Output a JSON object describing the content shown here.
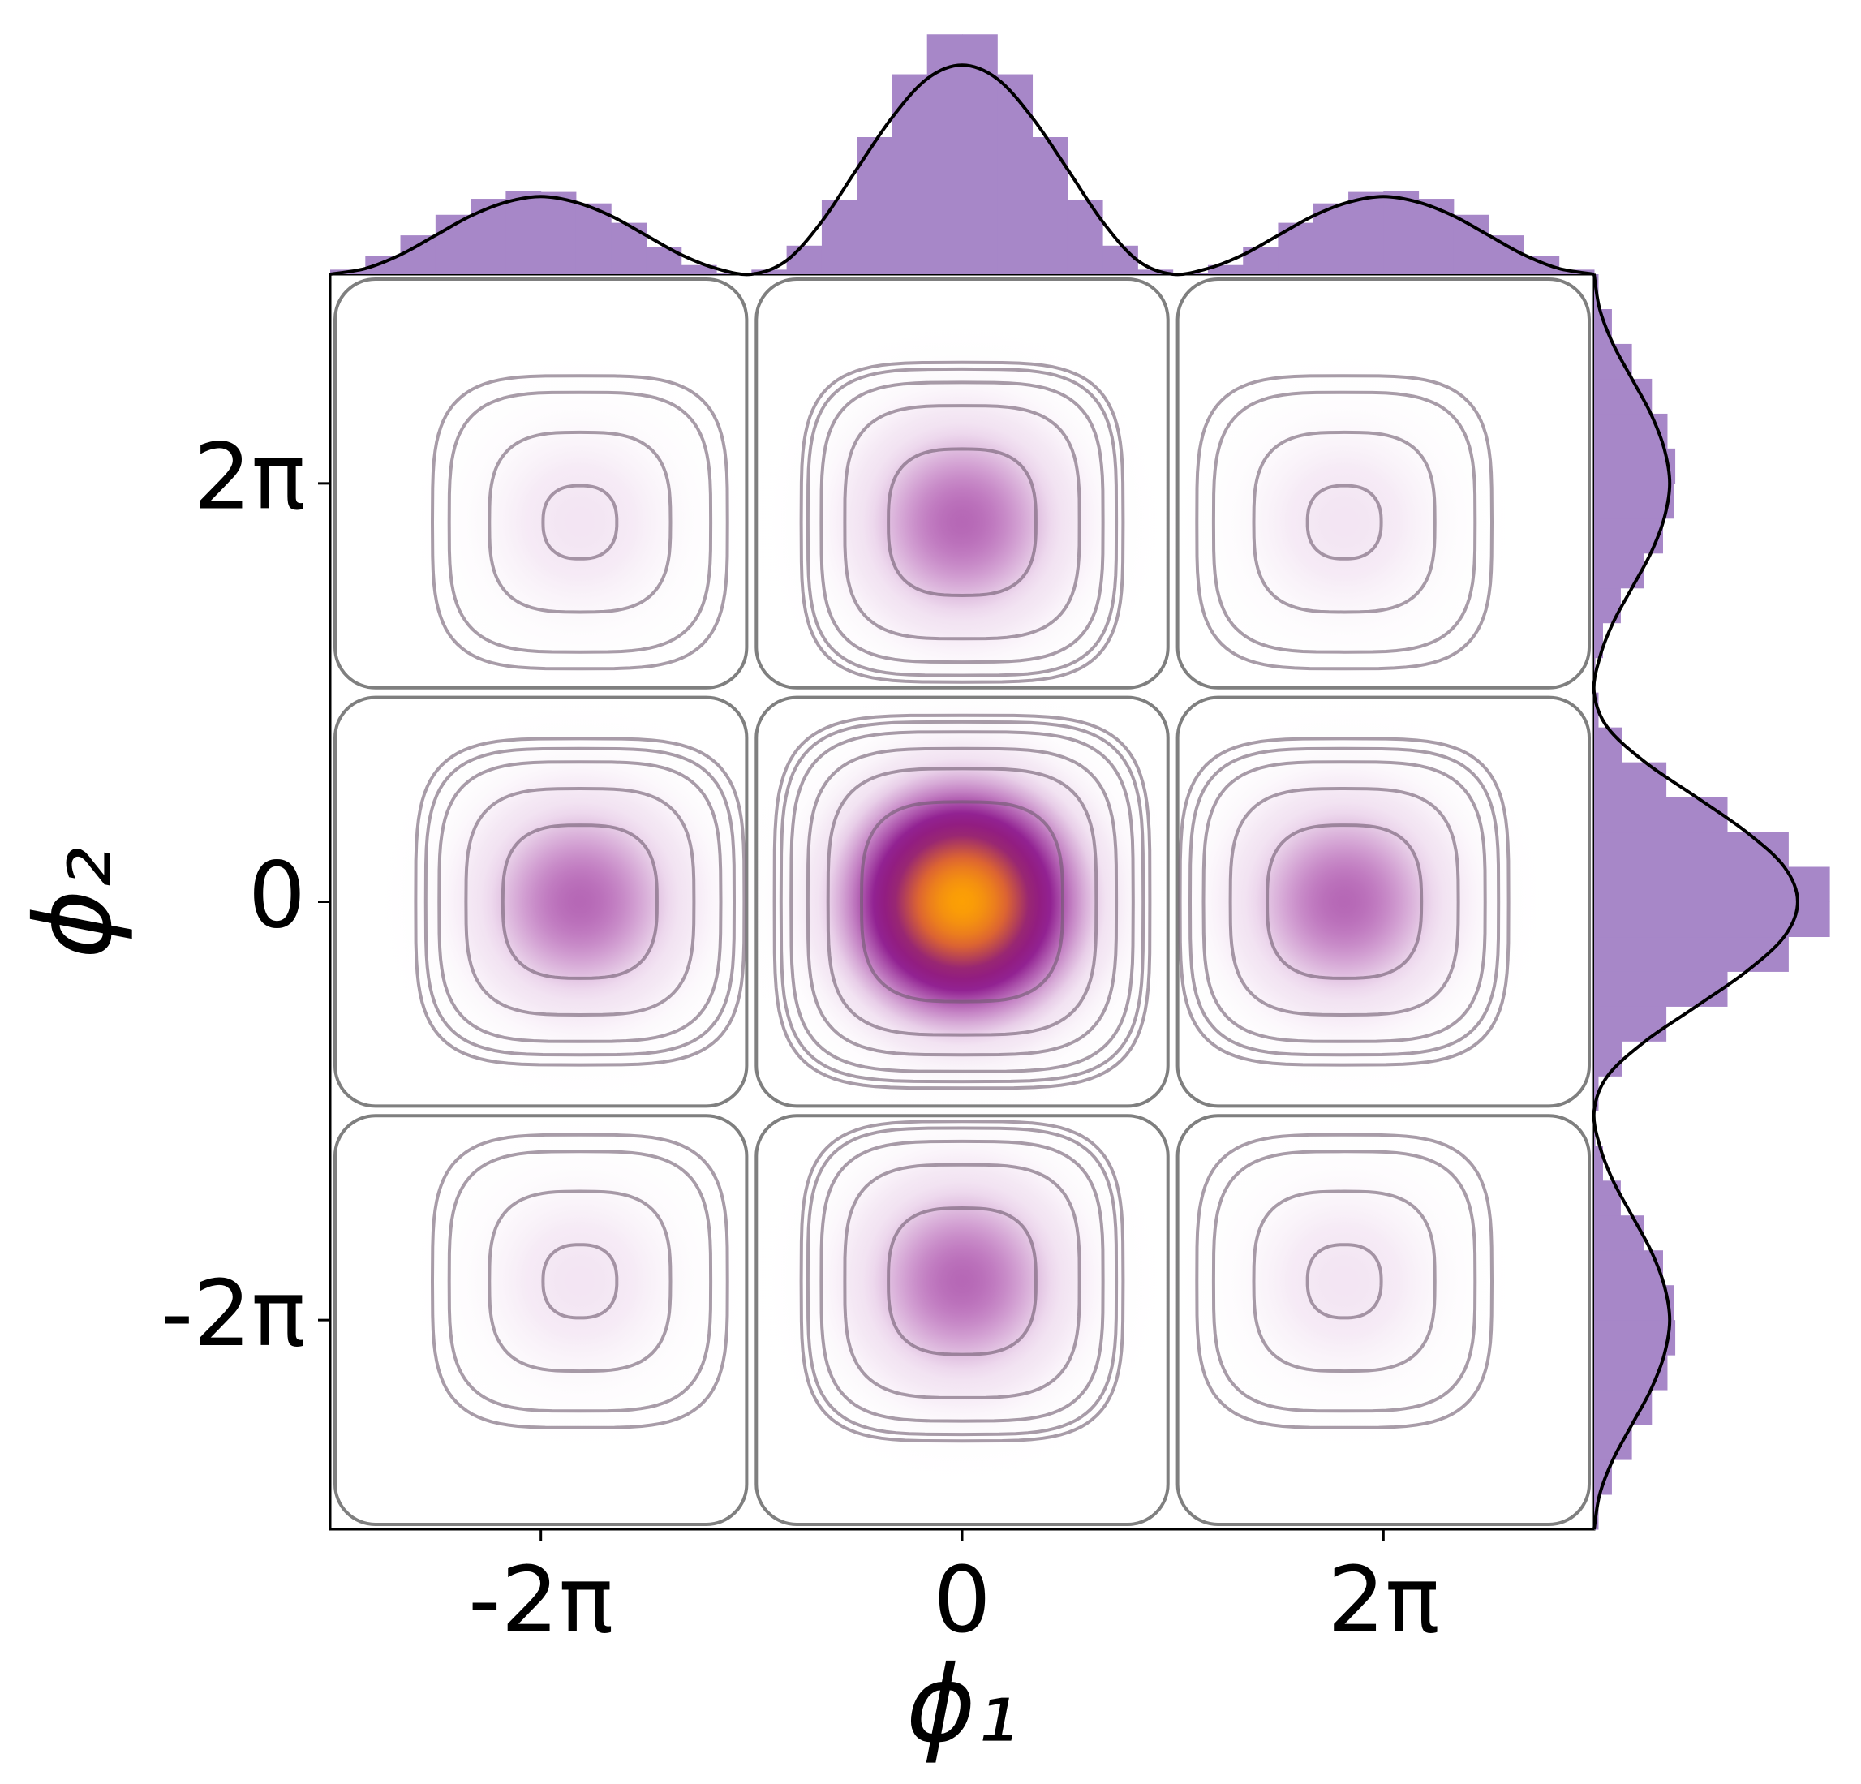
{
  "chart_data": {
    "type": "joint",
    "xlabel": "ϕ₁",
    "ylabel": "ϕ₂",
    "xlim": [
      -9.425,
      9.425
    ],
    "ylim": [
      -9.425,
      9.425
    ],
    "xticks": [
      {
        "value": -6.283,
        "label": "-2π"
      },
      {
        "value": 0,
        "label": "0"
      },
      {
        "value": 6.283,
        "label": "2π"
      }
    ],
    "yticks": [
      {
        "value": -6.283,
        "label": "-2π"
      },
      {
        "value": 0,
        "label": "0"
      },
      {
        "value": 6.283,
        "label": "2π"
      }
    ],
    "colormap": [
      "#ffffff",
      "#f0dff0",
      "#c07ac0",
      "#8c168c",
      "#9a2870",
      "#e0682e",
      "#ffa500"
    ],
    "vlim": [
      0,
      0.034
    ],
    "contour_color": "#6e5a6e",
    "separatrix_color": "#7f7f7f",
    "cells": {
      "centers": [
        -6.283,
        0,
        6.283
      ],
      "half_width": 3.142
    },
    "blobs": [
      {
        "x": -5.7,
        "y": 5.7,
        "peak": 0.0046,
        "sigma": 1.1,
        "contours": [
          0.55,
          1.35,
          1.95,
          2.2
        ]
      },
      {
        "x": 0,
        "y": 5.7,
        "peak": 0.0124,
        "sigma": 1.1,
        "contours": [
          1.1,
          1.75,
          2.1,
          2.3,
          2.4
        ]
      },
      {
        "x": 5.7,
        "y": 5.7,
        "peak": 0.0046,
        "sigma": 1.1,
        "contours": [
          0.55,
          1.35,
          1.95,
          2.2
        ]
      },
      {
        "x": -5.7,
        "y": 0,
        "peak": 0.0124,
        "sigma": 1.1,
        "contours": [
          1.15,
          1.7,
          2.1,
          2.3,
          2.45
        ]
      },
      {
        "x": 0,
        "y": 0,
        "peak": 0.0335,
        "sigma": 1.1,
        "contours": [
          1.5,
          2.0,
          2.3,
          2.55,
          2.7,
          2.8
        ]
      },
      {
        "x": 5.7,
        "y": 0,
        "peak": 0.0124,
        "sigma": 1.1,
        "contours": [
          1.15,
          1.7,
          2.1,
          2.3,
          2.45
        ]
      },
      {
        "x": -5.7,
        "y": -5.7,
        "peak": 0.0046,
        "sigma": 1.1,
        "contours": [
          0.55,
          1.35,
          1.95,
          2.2
        ]
      },
      {
        "x": 0,
        "y": -5.7,
        "peak": 0.0124,
        "sigma": 1.1,
        "contours": [
          1.1,
          1.75,
          2.1,
          2.3,
          2.4
        ]
      },
      {
        "x": 5.7,
        "y": -5.7,
        "peak": 0.0046,
        "sigma": 1.1,
        "contours": [
          0.55,
          1.35,
          1.95,
          2.2
        ]
      }
    ],
    "top_marginal": {
      "color": "#a787c8",
      "kde_color": "#000000",
      "ylim": [
        0,
        0.24
      ],
      "bins": [
        -9.425,
        -8.901,
        -8.378,
        -7.854,
        -7.33,
        -6.807,
        -6.283,
        -5.76,
        -5.236,
        -4.712,
        -4.189,
        -3.665,
        -3.142,
        -2.618,
        -2.094,
        -1.571,
        -1.047,
        -0.524,
        0,
        0.524,
        1.047,
        1.571,
        2.094,
        2.618,
        3.142,
        3.665,
        4.189,
        4.712,
        5.236,
        5.76,
        6.283,
        6.807,
        7.33,
        7.854,
        8.378,
        8.901,
        9.425
      ],
      "counts": [
        0.004,
        0.016,
        0.034,
        0.052,
        0.066,
        0.073,
        0.072,
        0.062,
        0.045,
        0.024,
        0.008,
        0.001,
        0.004,
        0.025,
        0.065,
        0.12,
        0.175,
        0.21,
        0.21,
        0.175,
        0.12,
        0.065,
        0.025,
        0.004,
        0.001,
        0.008,
        0.024,
        0.045,
        0.062,
        0.072,
        0.073,
        0.066,
        0.052,
        0.034,
        0.016,
        0.004
      ],
      "kde_x": [
        -9.425,
        -8.901,
        -8.378,
        -7.854,
        -7.33,
        -6.807,
        -6.283,
        -5.76,
        -5.236,
        -4.712,
        -4.189,
        -3.665,
        -3.142,
        -2.618,
        -2.094,
        -1.571,
        -1.047,
        -0.524,
        0,
        0.524,
        1.047,
        1.571,
        2.094,
        2.618,
        3.142,
        3.665,
        4.189,
        4.712,
        5.236,
        5.76,
        6.283,
        6.807,
        7.33,
        7.854,
        8.378,
        8.901,
        9.425
      ],
      "kde": [
        0,
        0.005,
        0.017,
        0.034,
        0.051,
        0.063,
        0.068,
        0.063,
        0.051,
        0.034,
        0.017,
        0.005,
        0,
        0.012,
        0.046,
        0.092,
        0.137,
        0.171,
        0.183,
        0.171,
        0.137,
        0.092,
        0.046,
        0.012,
        0,
        0.005,
        0.017,
        0.034,
        0.051,
        0.063,
        0.068,
        0.063,
        0.051,
        0.034,
        0.017,
        0.005,
        0
      ]
    },
    "right_marginal": {
      "color": "#a787c8",
      "kde_color": "#000000",
      "xlim": [
        0,
        0.24
      ],
      "bins": [
        -9.425,
        -8.901,
        -8.378,
        -7.854,
        -7.33,
        -6.807,
        -6.283,
        -5.76,
        -5.236,
        -4.712,
        -4.189,
        -3.665,
        -3.142,
        -2.618,
        -2.094,
        -1.571,
        -1.047,
        -0.524,
        0,
        0.524,
        1.047,
        1.571,
        2.094,
        2.618,
        3.142,
        3.665,
        4.189,
        4.712,
        5.236,
        5.76,
        6.283,
        6.807,
        7.33,
        7.854,
        8.378,
        8.901,
        9.425
      ],
      "counts": [
        0.004,
        0.016,
        0.034,
        0.052,
        0.066,
        0.073,
        0.072,
        0.062,
        0.045,
        0.024,
        0.008,
        0.001,
        0.004,
        0.025,
        0.065,
        0.12,
        0.175,
        0.212,
        0.212,
        0.175,
        0.12,
        0.065,
        0.025,
        0.004,
        0.001,
        0.008,
        0.024,
        0.045,
        0.062,
        0.072,
        0.073,
        0.066,
        0.052,
        0.034,
        0.016,
        0.004
      ],
      "kde_x": [
        -9.425,
        -8.901,
        -8.378,
        -7.854,
        -7.33,
        -6.807,
        -6.283,
        -5.76,
        -5.236,
        -4.712,
        -4.189,
        -3.665,
        -3.142,
        -2.618,
        -2.094,
        -1.571,
        -1.047,
        -0.524,
        0,
        0.524,
        1.047,
        1.571,
        2.094,
        2.618,
        3.142,
        3.665,
        4.189,
        4.712,
        5.236,
        5.76,
        6.283,
        6.807,
        7.33,
        7.854,
        8.378,
        8.901,
        9.425
      ],
      "kde": [
        0,
        0.005,
        0.017,
        0.034,
        0.051,
        0.063,
        0.068,
        0.063,
        0.051,
        0.034,
        0.017,
        0.005,
        0,
        0.012,
        0.046,
        0.092,
        0.137,
        0.171,
        0.183,
        0.171,
        0.137,
        0.092,
        0.046,
        0.012,
        0,
        0.005,
        0.017,
        0.034,
        0.051,
        0.063,
        0.068,
        0.063,
        0.051,
        0.034,
        0.017,
        0.005,
        0
      ]
    }
  }
}
